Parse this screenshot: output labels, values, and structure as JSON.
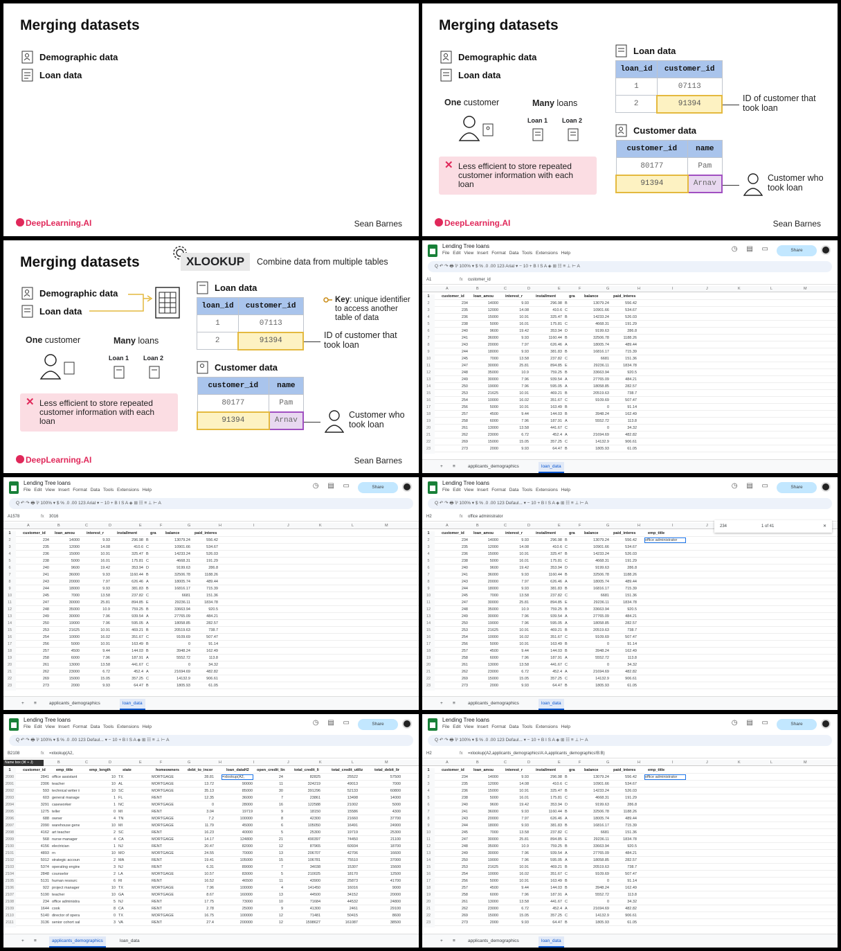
{
  "slide": {
    "title": "Merging datasets",
    "demographic": "Demographic data",
    "loan": "Loan data",
    "one_customer_prefix": "One",
    "one_customer_suffix": " customer",
    "many_loans_prefix": "Many",
    "many_loans_suffix": " loans",
    "loan1": "Loan 1",
    "loan2": "Loan 2",
    "warning": "Less efficient to store repeated customer information with each loan",
    "loan_table_title": "Loan data",
    "loan_table": {
      "headers": [
        "loan_id",
        "customer_id"
      ],
      "rows": [
        [
          "1",
          "07113"
        ],
        [
          "2",
          "91394"
        ]
      ]
    },
    "customer_table_title": "Customer data",
    "customer_table": {
      "headers": [
        "customer_id",
        "name"
      ],
      "rows": [
        [
          "80177",
          "Pam"
        ],
        [
          "91394",
          "Arnav"
        ]
      ]
    },
    "id_note": "ID of customer that took loan",
    "customer_note": "Customer who took loan",
    "brand": "DeepLearning.AI",
    "author": "Sean Barnes",
    "xlookup": "XLOOKUP",
    "xlookup_desc": "Combine data from multiple tables",
    "key_bold": "Key",
    "key_text": ": unique identifier to access another table of data"
  },
  "sheet": {
    "doc_title": "Lending Tree loans",
    "menu": [
      "File",
      "Edit",
      "View",
      "Insert",
      "Format",
      "Data",
      "Tools",
      "Extensions",
      "Help"
    ],
    "share": "Share",
    "toolbar": "Q  ↶  ↷  🖶  ⅌  100% ▾  $  %  .0  .00  123  Arial ▾  −  10  +  B  I  S  A  ◈  ⊞  ☷  ≡  ⊥  ⊢  A",
    "toolbar_default": "Q  ↶  ↷  🖶  ⅌  100% ▾  $  %  .0  .00  123  Defaul... ▾  −  10  +  B  I  S  A  ◈  ⊞  ☷  ≡  ⊥  ⊢  A",
    "columns": [
      "A",
      "B",
      "C",
      "D",
      "E",
      "F",
      "G",
      "H",
      "I",
      "J",
      "K",
      "L",
      "M"
    ],
    "loan_headers": [
      "customer_id",
      "loan_amou",
      "interest_r",
      "installment",
      "gra",
      "balance",
      "paid_interes"
    ],
    "emp_title_header": "emp_title",
    "loan_rows": [
      [
        "234",
        "14000",
        "9.93",
        "296.98",
        "B",
        "13079.24",
        "556.42"
      ],
      [
        "235",
        "12000",
        "14.08",
        "410.6",
        "C",
        "10901.66",
        "534.67"
      ],
      [
        "236",
        "15000",
        "10.91",
        "325.47",
        "B",
        "14233.24",
        "526.03"
      ],
      [
        "238",
        "5000",
        "16.01",
        "175.81",
        "C",
        "4668.31",
        "191.29"
      ],
      [
        "240",
        "9600",
        "19.42",
        "353.94",
        "D",
        "9199.63",
        "286.8"
      ],
      [
        "241",
        "36000",
        "9.93",
        "1160.44",
        "B",
        "32506.78",
        "1188.26"
      ],
      [
        "243",
        "20000",
        "7.97",
        "626.46",
        "A",
        "18005.74",
        "489.44"
      ],
      [
        "244",
        "18000",
        "9.93",
        "381.83",
        "B",
        "16816.17",
        "715.39"
      ],
      [
        "245",
        "7000",
        "13.58",
        "237.82",
        "C",
        "6681",
        "151.36"
      ],
      [
        "247",
        "30000",
        "25.81",
        "894.85",
        "E",
        "29236.11",
        "1834.78"
      ],
      [
        "248",
        "35000",
        "10.9",
        "759.25",
        "B",
        "33663.94",
        "920.5"
      ],
      [
        "249",
        "30000",
        "7.96",
        "939.54",
        "A",
        "27765.09",
        "484.21"
      ],
      [
        "250",
        "19000",
        "7.96",
        "595.05",
        "A",
        "18058.85",
        "282.57"
      ],
      [
        "253",
        "21625",
        "10.91",
        "469.21",
        "B",
        "20519.63",
        "738.7"
      ],
      [
        "254",
        "10000",
        "16.02",
        "351.67",
        "C",
        "9109.69",
        "507.47"
      ],
      [
        "256",
        "5000",
        "10.91",
        "163.49",
        "B",
        "0",
        "91.14"
      ],
      [
        "257",
        "4500",
        "9.44",
        "144.03",
        "B",
        "3948.24",
        "162.49"
      ],
      [
        "258",
        "6000",
        "7.96",
        "187.91",
        "A",
        "5552.72",
        "113.8"
      ],
      [
        "261",
        "13000",
        "13.58",
        "441.67",
        "C",
        "0",
        "34.32"
      ],
      [
        "262",
        "23000",
        "6.72",
        "452.4",
        "A",
        "21694.69",
        "482.82"
      ],
      [
        "269",
        "15000",
        "15.05",
        "357.25",
        "C",
        "14132.9",
        "906.61"
      ],
      [
        "273",
        "2000",
        "9.93",
        "64.47",
        "B",
        "1805.93",
        "61.05"
      ]
    ],
    "demo_headers": [
      "customer_id",
      "emp_title",
      "emp_length",
      "state",
      "homeowners",
      "debt_to_incor",
      "loan_dataH2",
      "open_credit_lin",
      "total_credit_li",
      "total_credit_utiliz",
      "total_debit_lir"
    ],
    "demo_row_start": 2090,
    "demo_rows": [
      [
        "2841",
        "office assistant",
        "10",
        "TX",
        "MORTGAGE",
        "28.81",
        "",
        "24",
        "82825",
        "25522",
        "57500"
      ],
      [
        "2306",
        "teacher",
        "10",
        "AL",
        "MORTGAGE",
        "13.72",
        "90000",
        "11",
        "324219",
        "49013",
        "7000"
      ],
      [
        "593",
        "technical writer ii",
        "10",
        "SC",
        "MORTGAGE",
        "35.13",
        "85000",
        "30",
        "391296",
        "52133",
        "60800"
      ],
      [
        "603",
        "general manage",
        "1",
        "FL",
        "RENT",
        "12.35",
        "36000",
        "7",
        "23861",
        "13498",
        "14000"
      ],
      [
        "3291",
        "caseworker",
        "1",
        "NC",
        "MORTGAGE",
        "0",
        "28000",
        "16",
        "122588",
        "21002",
        "5000"
      ],
      [
        "1275",
        "teller",
        "0",
        "MI",
        "RENT",
        "3.04",
        "19719",
        "9",
        "18150",
        "15586",
        "4300"
      ],
      [
        "688",
        "owner",
        "4",
        "TN",
        "MORTGAGE",
        "7.2",
        "100000",
        "8",
        "42300",
        "21660",
        "37700"
      ],
      [
        "2090",
        "warehouse gene",
        "10",
        "MI",
        "MORTGAGE",
        "11.79",
        "45000",
        "6",
        "105050",
        "16491",
        "24900"
      ],
      [
        "4162",
        "art teacher",
        "2",
        "SC",
        "RENT",
        "16.23",
        "40000",
        "5",
        "25300",
        "19719",
        "25300"
      ],
      [
        "568",
        "nurse manager",
        "4",
        "CA",
        "MORTGAGE",
        "14.17",
        "124800",
        "21",
        "490397",
        "74450",
        "21100"
      ],
      [
        "4156",
        "electrician",
        "1",
        "NJ",
        "RENT",
        "20.47",
        "82000",
        "12",
        "87965",
        "60934",
        "18700"
      ],
      [
        "4893",
        "rn",
        "10",
        "MO",
        "MORTGAGE",
        "24.55",
        "70000",
        "13",
        "206707",
        "42706",
        "16600"
      ],
      [
        "5012",
        "strategic accoun",
        "2",
        "MA",
        "RENT",
        "19.41",
        "105000",
        "15",
        "106781",
        "75510",
        "37000"
      ],
      [
        "5374",
        "operating engine",
        "3",
        "NJ",
        "RENT",
        "6.31",
        "89000",
        "7",
        "34038",
        "15307",
        "15600"
      ],
      [
        "2848",
        "counselor",
        "2",
        "LA",
        "MORTGAGE",
        "10.57",
        "83000",
        "5",
        "210025",
        "18170",
        "12500"
      ],
      [
        "5131",
        "human resourc",
        "6",
        "RI",
        "RENT",
        "16.52",
        "46500",
        "11",
        "43900",
        "25873",
        "41700"
      ],
      [
        "922",
        "project manager",
        "10",
        "TX",
        "MORTGAGE",
        "7.96",
        "100000",
        "4",
        "141450",
        "16016",
        "9000"
      ],
      [
        "5190",
        "teacher",
        "10",
        "GA",
        "MORTGAGE",
        "8.67",
        "160000",
        "13",
        "44500",
        "34152",
        "20000"
      ],
      [
        "234",
        "office administra",
        "5",
        "NJ",
        "RENT",
        "17.75",
        "73000",
        "10",
        "71684",
        "44532",
        "24800"
      ],
      [
        "1644",
        "cook",
        "8",
        "CA",
        "RENT",
        "2.78",
        "25000",
        "9",
        "41300",
        "2461",
        "29100"
      ],
      [
        "5140",
        "director of opera",
        "0",
        "TX",
        "MORTGAGE",
        "16.75",
        "100000",
        "12",
        "71481",
        "50415",
        "8600"
      ],
      [
        "3136",
        "senior cohort sal",
        "3",
        "VA",
        "RENT",
        "27.4",
        "200000",
        "12",
        "1598627",
        "161087",
        "38500"
      ]
    ],
    "tabs": {
      "demographics": "applicants_demographics",
      "loan": "loan_data"
    },
    "p4": {
      "name_box": "A1",
      "formula": "customer_id"
    },
    "p5": {
      "name_box": "A1578",
      "formula": "3016"
    },
    "p6": {
      "name_box": "H2",
      "formula": "office administrator",
      "find_value": "234",
      "find_count": "1 of 41",
      "cell": "office administrator"
    },
    "p7": {
      "name_box": "B2108",
      "formula": "=xlookup(A2,",
      "name_box_tip": "Name box (⌘ + J)",
      "cell": "=xlookup(A2,"
    },
    "p8": {
      "name_box": "H2",
      "formula": "=xlookup(A2,applicants_demographics!A:A,applicants_demographics!B:B)",
      "cell": "office administrator"
    }
  },
  "colors": {
    "brand": "#e0285a",
    "header_blue": "#a9c4ec",
    "highlight_yellow": "#fdf2c2",
    "highlight_purple": "#e8d8f0",
    "warning_pink": "#fbdde3",
    "sheets_green": "#188038"
  }
}
